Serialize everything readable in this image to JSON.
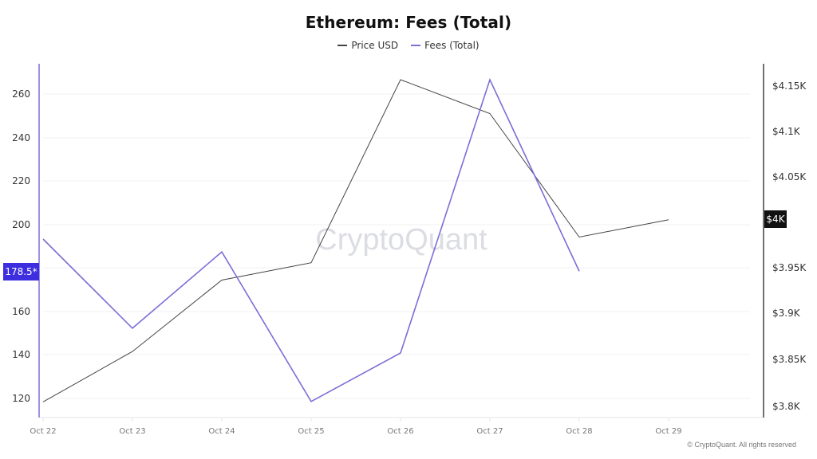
{
  "chart": {
    "title": "Ethereum: Fees (Total)",
    "legend": [
      {
        "label": "Price USD",
        "color": "#444444"
      },
      {
        "label": "Fees (Total)",
        "color": "#7b6fd6"
      }
    ],
    "left_axis": {
      "ticks": [
        "260",
        "240",
        "220",
        "200",
        "160",
        "140",
        "120"
      ],
      "current_value_badge": "178.5*",
      "badge_color": "#3d2fe0",
      "axis_color": "#7b6fd6"
    },
    "right_axis": {
      "ticks": [
        "$4.15K",
        "$4.1K",
        "$4.05K",
        "$3.95K",
        "$3.9K",
        "$3.85K",
        "$3.8K"
      ],
      "current_value_badge": "$4K",
      "badge_color": "#111111",
      "axis_color": "#111111"
    },
    "x_axis": {
      "ticks": [
        "Oct 22",
        "Oct 23",
        "Oct 24",
        "Oct 25",
        "Oct 26",
        "Oct 27",
        "Oct 28",
        "Oct 29"
      ]
    },
    "watermark": "CryptoQuant",
    "copyright": "© CryptoQuant. All rights reserved"
  },
  "chart_data": {
    "type": "line",
    "title": "Ethereum: Fees (Total)",
    "xlabel": "",
    "ylabel": "Fees (Total)",
    "y2label": "Price USD",
    "categories": [
      "Oct 22",
      "Oct 23",
      "Oct 24",
      "Oct 25",
      "Oct 26",
      "Oct 27",
      "Oct 28",
      "Oct 29"
    ],
    "series": [
      {
        "name": "Price USD",
        "axis": "right",
        "color": "#444444",
        "values": [
          3805,
          3860,
          3938,
          3957,
          4157,
          4120,
          3985,
          4004
        ]
      },
      {
        "name": "Fees (Total)",
        "axis": "left",
        "color": "#7b6fd6",
        "values": [
          193.3,
          152.3,
          187.4,
          118.6,
          140.9,
          266.6,
          178.5,
          null
        ]
      }
    ],
    "ylim": [
      114,
      272
    ],
    "y2lim": [
      3795,
      4180
    ],
    "grid": true,
    "legend_position": "top"
  }
}
